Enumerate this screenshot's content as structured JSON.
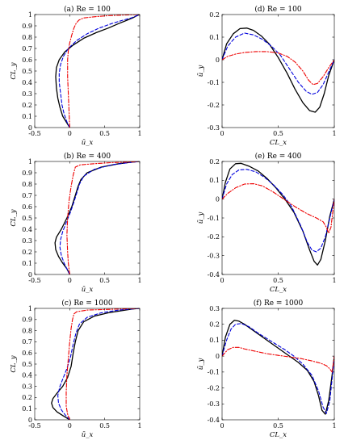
{
  "chart_data": [
    {
      "type": "line",
      "title": "(a) Re = 100",
      "xlabel": "ū_x",
      "ylabel": "CL_y",
      "xlim": [
        -0.5,
        1
      ],
      "ylim": [
        0,
        1
      ],
      "xticks": [
        -0.5,
        0,
        0.5,
        1
      ],
      "xtick_labels": [
        "-0.5",
        "0",
        "0.5",
        "1"
      ],
      "yticks": [
        0,
        0.1,
        0.2,
        0.3,
        0.4,
        0.5,
        0.6,
        0.7,
        0.8,
        0.9,
        1
      ],
      "ytick_labels": [
        "0",
        "0.1",
        "0.2",
        "0.3",
        "0.4",
        "0.5",
        "0.6",
        "0.7",
        "0.8",
        "0.9",
        "1"
      ],
      "grid": false,
      "series": [
        {
          "color": "#000000",
          "dash": "solid",
          "x": [
            0,
            -0.05,
            -0.1,
            -0.14,
            -0.17,
            -0.19,
            -0.2,
            -0.19,
            -0.15,
            -0.07,
            0.05,
            0.2,
            0.38,
            0.55,
            0.7,
            0.82,
            0.9,
            0.96,
            1.0
          ],
          "y": [
            0,
            0.05,
            0.1,
            0.18,
            0.26,
            0.35,
            0.45,
            0.53,
            0.6,
            0.67,
            0.73,
            0.79,
            0.84,
            0.88,
            0.92,
            0.95,
            0.97,
            0.99,
            1.0
          ]
        },
        {
          "color": "#0000dd",
          "dash": "dashed",
          "x": [
            0,
            -0.04,
            -0.08,
            -0.11,
            -0.13,
            -0.15,
            -0.15,
            -0.13,
            -0.09,
            -0.02,
            0.1,
            0.25,
            0.42,
            0.6,
            0.76,
            0.88,
            0.96,
            1.0
          ],
          "y": [
            0,
            0.05,
            0.12,
            0.2,
            0.3,
            0.4,
            0.48,
            0.56,
            0.63,
            0.7,
            0.77,
            0.83,
            0.88,
            0.92,
            0.95,
            0.97,
            0.99,
            1.0
          ]
        },
        {
          "color": "#ee0000",
          "dash": "dashdot",
          "x": [
            0,
            -0.01,
            -0.02,
            -0.03,
            -0.03,
            -0.02,
            0.0,
            0.03,
            0.06,
            0.09,
            0.13,
            0.2,
            0.35,
            0.55,
            0.75,
            1.0
          ],
          "y": [
            0,
            0.15,
            0.3,
            0.45,
            0.6,
            0.68,
            0.75,
            0.82,
            0.88,
            0.92,
            0.95,
            0.97,
            0.98,
            0.99,
            0.995,
            1.0
          ]
        }
      ]
    },
    {
      "type": "line",
      "title": "(d) Re = 100",
      "xlabel": "CL_x",
      "ylabel": "ū_y",
      "xlim": [
        0,
        1
      ],
      "ylim": [
        -0.3,
        0.2
      ],
      "xticks": [
        0,
        0.5,
        1
      ],
      "xtick_labels": [
        "0",
        "0.5",
        "1"
      ],
      "yticks": [
        -0.3,
        -0.2,
        -0.1,
        0,
        0.1,
        0.2
      ],
      "ytick_labels": [
        "-0.3",
        "-0.2",
        "-0.1",
        "0",
        "0.1",
        "0.2"
      ],
      "grid": false,
      "series": [
        {
          "color": "#000000",
          "dash": "solid",
          "x": [
            0,
            0.04,
            0.1,
            0.16,
            0.22,
            0.28,
            0.35,
            0.42,
            0.5,
            0.58,
            0.65,
            0.72,
            0.78,
            0.83,
            0.87,
            0.91,
            0.95,
            1.0
          ],
          "y": [
            0,
            0.07,
            0.115,
            0.138,
            0.14,
            0.13,
            0.105,
            0.07,
            0.01,
            -0.06,
            -0.13,
            -0.19,
            -0.225,
            -0.232,
            -0.21,
            -0.15,
            -0.07,
            0
          ]
        },
        {
          "color": "#0000dd",
          "dash": "dashed",
          "x": [
            0,
            0.05,
            0.12,
            0.2,
            0.28,
            0.36,
            0.44,
            0.52,
            0.6,
            0.68,
            0.75,
            0.8,
            0.85,
            0.9,
            0.95,
            1.0
          ],
          "y": [
            0,
            0.06,
            0.1,
            0.118,
            0.11,
            0.09,
            0.06,
            0.02,
            -0.04,
            -0.1,
            -0.14,
            -0.153,
            -0.145,
            -0.11,
            -0.055,
            0
          ]
        },
        {
          "color": "#ee0000",
          "dash": "dashdot",
          "x": [
            0,
            0.05,
            0.12,
            0.2,
            0.3,
            0.4,
            0.5,
            0.58,
            0.65,
            0.72,
            0.77,
            0.81,
            0.85,
            0.9,
            0.95,
            1.0
          ],
          "y": [
            0,
            0.015,
            0.025,
            0.032,
            0.036,
            0.036,
            0.03,
            0.015,
            -0.01,
            -0.05,
            -0.09,
            -0.11,
            -0.105,
            -0.075,
            -0.035,
            0
          ]
        }
      ]
    },
    {
      "type": "line",
      "title": "(b) Re = 400",
      "xlabel": "ū_x",
      "ylabel": "CL_y",
      "xlim": [
        -0.5,
        1
      ],
      "ylim": [
        0,
        1
      ],
      "xticks": [
        -0.5,
        0,
        0.5,
        1
      ],
      "xtick_labels": [
        "-0.5",
        "0",
        "0.5",
        "1"
      ],
      "yticks": [
        0,
        0.1,
        0.2,
        0.3,
        0.4,
        0.5,
        0.6,
        0.7,
        0.8,
        0.9,
        1
      ],
      "ytick_labels": [
        "0",
        "0.1",
        "0.2",
        "0.3",
        "0.4",
        "0.5",
        "0.6",
        "0.7",
        "0.8",
        "0.9",
        "1"
      ],
      "grid": false,
      "series": [
        {
          "color": "#000000",
          "dash": "solid",
          "x": [
            0,
            -0.04,
            -0.1,
            -0.16,
            -0.2,
            -0.21,
            -0.19,
            -0.12,
            -0.04,
            0.03,
            0.08,
            0.12,
            0.16,
            0.25,
            0.45,
            0.7,
            0.9,
            1.0
          ],
          "y": [
            0,
            0.05,
            0.1,
            0.16,
            0.22,
            0.28,
            0.33,
            0.4,
            0.5,
            0.6,
            0.7,
            0.78,
            0.84,
            0.9,
            0.95,
            0.98,
            0.995,
            1.0
          ]
        },
        {
          "color": "#0000dd",
          "dash": "dashed",
          "x": [
            0,
            -0.04,
            -0.08,
            -0.12,
            -0.14,
            -0.13,
            -0.1,
            -0.05,
            0.01,
            0.06,
            0.1,
            0.14,
            0.2,
            0.35,
            0.6,
            0.85,
            1.0
          ],
          "y": [
            0,
            0.05,
            0.1,
            0.17,
            0.24,
            0.31,
            0.38,
            0.46,
            0.55,
            0.64,
            0.72,
            0.8,
            0.87,
            0.93,
            0.97,
            0.99,
            1.0
          ]
        },
        {
          "color": "#ee0000",
          "dash": "dashdot",
          "x": [
            0,
            -0.02,
            -0.03,
            -0.04,
            -0.03,
            -0.01,
            0.02,
            0.05,
            0.08,
            0.15,
            0.35,
            0.6,
            0.85,
            1.0
          ],
          "y": [
            0,
            0.1,
            0.2,
            0.35,
            0.5,
            0.65,
            0.78,
            0.88,
            0.95,
            0.97,
            0.98,
            0.99,
            0.995,
            1.0
          ]
        }
      ]
    },
    {
      "type": "line",
      "title": "(e) Re = 400",
      "xlabel": "CL_x",
      "ylabel": "ū_y",
      "xlim": [
        0,
        1
      ],
      "ylim": [
        -0.4,
        0.2
      ],
      "xticks": [
        0,
        0.5,
        1
      ],
      "xtick_labels": [
        "0",
        "0.5",
        "1"
      ],
      "yticks": [
        -0.4,
        -0.3,
        -0.2,
        -0.1,
        0,
        0.1,
        0.2
      ],
      "ytick_labels": [
        "-0.4",
        "-0.3",
        "-0.2",
        "-0.1",
        "0",
        "0.1",
        "0.2"
      ],
      "grid": false,
      "series": [
        {
          "color": "#000000",
          "dash": "solid",
          "x": [
            0,
            0.03,
            0.07,
            0.12,
            0.17,
            0.24,
            0.32,
            0.4,
            0.48,
            0.56,
            0.64,
            0.72,
            0.78,
            0.82,
            0.85,
            0.88,
            0.92,
            0.96,
            1.0
          ],
          "y": [
            0,
            0.09,
            0.16,
            0.188,
            0.19,
            0.175,
            0.15,
            0.11,
            0.06,
            0.0,
            -0.07,
            -0.17,
            -0.27,
            -0.33,
            -0.35,
            -0.32,
            -0.22,
            -0.09,
            0
          ]
        },
        {
          "color": "#0000dd",
          "dash": "dashed",
          "x": [
            0,
            0.04,
            0.09,
            0.15,
            0.22,
            0.3,
            0.38,
            0.46,
            0.54,
            0.62,
            0.7,
            0.76,
            0.8,
            0.84,
            0.88,
            0.92,
            0.96,
            1.0
          ],
          "y": [
            0,
            0.08,
            0.13,
            0.155,
            0.158,
            0.145,
            0.115,
            0.075,
            0.025,
            -0.04,
            -0.14,
            -0.23,
            -0.27,
            -0.28,
            -0.26,
            -0.2,
            -0.1,
            0
          ]
        },
        {
          "color": "#ee0000",
          "dash": "dashdot",
          "x": [
            0,
            0.05,
            0.12,
            0.2,
            0.28,
            0.36,
            0.45,
            0.55,
            0.65,
            0.75,
            0.84,
            0.9,
            0.93,
            0.95,
            0.97,
            0.99,
            1.0
          ],
          "y": [
            0,
            0.03,
            0.06,
            0.08,
            0.082,
            0.07,
            0.04,
            0.0,
            -0.04,
            -0.075,
            -0.1,
            -0.12,
            -0.15,
            -0.18,
            -0.15,
            -0.05,
            0
          ]
        }
      ]
    },
    {
      "type": "line",
      "title": "(c) Re = 1000",
      "xlabel": "ū_x",
      "ylabel": "CL_y",
      "xlim": [
        -0.5,
        1
      ],
      "ylim": [
        0,
        1
      ],
      "xticks": [
        -0.5,
        0,
        0.5,
        1
      ],
      "xtick_labels": [
        "-0.5",
        "0",
        "0.5",
        "1"
      ],
      "yticks": [
        0,
        0.1,
        0.2,
        0.3,
        0.4,
        0.5,
        0.6,
        0.7,
        0.8,
        0.9,
        1
      ],
      "ytick_labels": [
        "0",
        "0.1",
        "0.2",
        "0.3",
        "0.4",
        "0.5",
        "0.6",
        "0.7",
        "0.8",
        "0.9",
        "1"
      ],
      "grid": false,
      "series": [
        {
          "color": "#000000",
          "dash": "solid",
          "x": [
            0,
            -0.08,
            -0.18,
            -0.24,
            -0.26,
            -0.24,
            -0.18,
            -0.1,
            -0.03,
            0.02,
            0.05,
            0.08,
            0.12,
            0.2,
            0.35,
            0.55,
            0.75,
            0.9,
            1.0
          ],
          "y": [
            0,
            0.03,
            0.07,
            0.11,
            0.15,
            0.19,
            0.24,
            0.3,
            0.38,
            0.48,
            0.6,
            0.7,
            0.8,
            0.88,
            0.93,
            0.96,
            0.98,
            0.995,
            1.0
          ]
        },
        {
          "color": "#0000dd",
          "dash": "dashed",
          "x": [
            0,
            -0.06,
            -0.12,
            -0.16,
            -0.17,
            -0.14,
            -0.09,
            -0.04,
            0.01,
            0.05,
            0.09,
            0.14,
            0.25,
            0.45,
            0.7,
            0.9,
            1.0
          ],
          "y": [
            0,
            0.04,
            0.09,
            0.15,
            0.22,
            0.3,
            0.38,
            0.46,
            0.56,
            0.68,
            0.78,
            0.86,
            0.92,
            0.96,
            0.985,
            0.995,
            1.0
          ]
        },
        {
          "color": "#ee0000",
          "dash": "dashdot",
          "x": [
            0,
            -0.03,
            -0.05,
            -0.05,
            -0.04,
            -0.02,
            0.0,
            0.02,
            0.04,
            0.06,
            0.1,
            0.25,
            0.5,
            0.75,
            1.0
          ],
          "y": [
            0,
            0.05,
            0.12,
            0.25,
            0.4,
            0.55,
            0.7,
            0.82,
            0.9,
            0.95,
            0.97,
            0.985,
            0.99,
            0.995,
            1.0
          ]
        }
      ]
    },
    {
      "type": "line",
      "title": "(f) Re = 1000",
      "xlabel": "CL_x",
      "ylabel": "ū_y",
      "xlim": [
        0,
        1
      ],
      "ylim": [
        -0.4,
        0.3
      ],
      "xticks": [
        0,
        0.5,
        1
      ],
      "xtick_labels": [
        "0",
        "0.5",
        "1"
      ],
      "yticks": [
        -0.4,
        -0.3,
        -0.2,
        -0.1,
        0,
        0.1,
        0.2,
        0.3
      ],
      "ytick_labels": [
        "-0.4",
        "-0.3",
        "-0.2",
        "-0.1",
        "0",
        "0.1",
        "0.2",
        "0.3"
      ],
      "grid": false,
      "series": [
        {
          "color": "#000000",
          "dash": "solid",
          "x": [
            0,
            0.03,
            0.07,
            0.11,
            0.15,
            0.2,
            0.28,
            0.36,
            0.44,
            0.52,
            0.6,
            0.68,
            0.76,
            0.82,
            0.86,
            0.89,
            0.92,
            0.95,
            0.98,
            1.0
          ],
          "y": [
            0,
            0.12,
            0.2,
            0.225,
            0.22,
            0.2,
            0.16,
            0.12,
            0.08,
            0.04,
            0.0,
            -0.04,
            -0.09,
            -0.16,
            -0.25,
            -0.34,
            -0.365,
            -0.28,
            -0.12,
            0
          ]
        },
        {
          "color": "#0000dd",
          "dash": "dashed",
          "x": [
            0,
            0.04,
            0.08,
            0.12,
            0.17,
            0.24,
            0.32,
            0.4,
            0.48,
            0.56,
            0.64,
            0.72,
            0.8,
            0.86,
            0.9,
            0.93,
            0.96,
            0.99,
            1.0
          ],
          "y": [
            0,
            0.1,
            0.17,
            0.2,
            0.205,
            0.185,
            0.145,
            0.11,
            0.075,
            0.04,
            0.0,
            -0.05,
            -0.12,
            -0.22,
            -0.32,
            -0.36,
            -0.28,
            -0.08,
            0
          ]
        },
        {
          "color": "#ee0000",
          "dash": "dashdot",
          "x": [
            0,
            0.05,
            0.1,
            0.15,
            0.2,
            0.3,
            0.4,
            0.5,
            0.6,
            0.7,
            0.8,
            0.88,
            0.93,
            0.96,
            0.98,
            1.0
          ],
          "y": [
            0,
            0.04,
            0.055,
            0.055,
            0.045,
            0.03,
            0.015,
            0.005,
            -0.005,
            -0.015,
            -0.03,
            -0.045,
            -0.06,
            -0.08,
            -0.1,
            0
          ]
        }
      ]
    }
  ]
}
